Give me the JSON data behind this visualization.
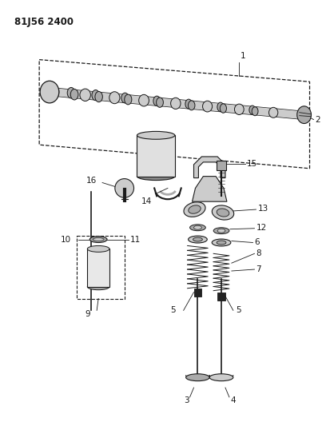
{
  "title": "81J56 2400",
  "bg_color": "#ffffff",
  "fg_color": "#1a1a1a",
  "gray_light": "#cccccc",
  "gray_mid": "#aaaaaa",
  "gray_dark": "#888888",
  "black_fill": "#222222"
}
